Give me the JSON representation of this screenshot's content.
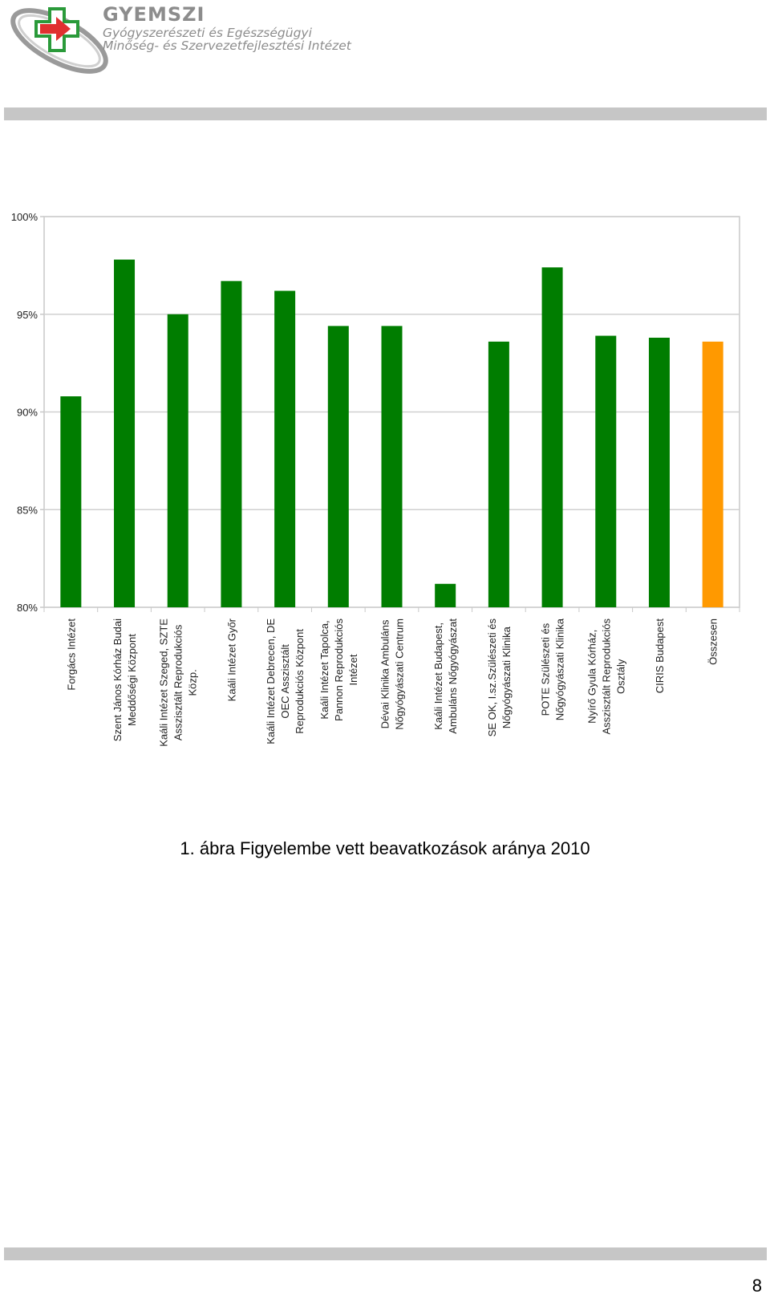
{
  "header": {
    "org_name": "GYEMSZI",
    "org_line1": "Gyógyszerészeti és Egészségügyi",
    "org_line2": "Minőség- és Szervezetfejlesztési Intézet"
  },
  "colors": {
    "bar": "#007d00",
    "highlight": "#ff9900",
    "grid": "#d0d0d0",
    "header_band": "#c6c6c6",
    "logo_red": "#e03030",
    "logo_green": "#2a9a3a"
  },
  "chart_data": {
    "type": "bar",
    "title": "",
    "xlabel": "",
    "ylabel": "",
    "ylim": [
      80,
      100
    ],
    "yticks": [
      80,
      85,
      90,
      95,
      100
    ],
    "ytick_labels": [
      "80%",
      "85%",
      "90%",
      "95%",
      "100%"
    ],
    "grid": true,
    "categories": [
      [
        "Forgács Intézet"
      ],
      [
        "Szent János Kórház Budai",
        "Meddőségi Központ"
      ],
      [
        "Kaáli Intézet Szeged, SZTE",
        "Asszisztált Reprodukciós",
        "Közp."
      ],
      [
        "Kaáli Intézet Győr"
      ],
      [
        "Kaáli Intézet Debrecen, DE",
        "OEC Asszisztált",
        "Reprodukciós Központ"
      ],
      [
        "Kaáli Intézet Tapolca,",
        "Pannon Reprodukciós",
        "Intézet"
      ],
      [
        "Dévai Klinika Ambuláns",
        "Nőgyógyászati Centrum"
      ],
      [
        "Kaáli Intézet Budapest,",
        "Ambuláns Nőgyógyászat"
      ],
      [
        "SE OK, I.sz.Szülészeti és",
        "Nőgyógyászati Klinika"
      ],
      [
        "POTE Szülészeti és",
        "Nőgyógyászati Klinika"
      ],
      [
        "Nyírő Gyula Kórház,",
        "Asszisztált Reprodukciós",
        "Osztály"
      ],
      [
        "CIRIS Budapest"
      ],
      [
        "Összesen"
      ]
    ],
    "values": [
      90.8,
      97.8,
      95.0,
      96.7,
      96.2,
      94.4,
      94.4,
      81.2,
      93.6,
      97.4,
      93.9,
      93.8,
      93.6
    ],
    "highlight_index": 12
  },
  "caption": "1. ábra Figyelembe vett beavatkozások aránya 2010",
  "page_number": "8"
}
